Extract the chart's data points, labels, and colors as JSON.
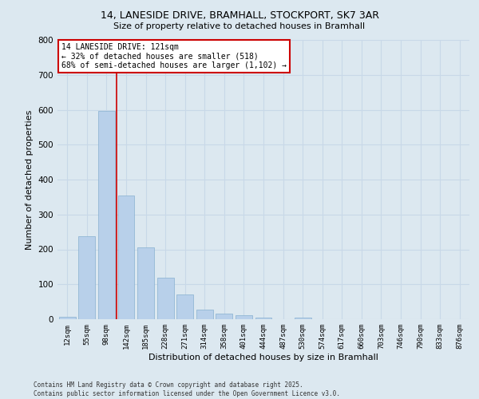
{
  "title_line1": "14, LANESIDE DRIVE, BRAMHALL, STOCKPORT, SK7 3AR",
  "title_line2": "Size of property relative to detached houses in Bramhall",
  "xlabel": "Distribution of detached houses by size in Bramhall",
  "ylabel": "Number of detached properties",
  "bar_labels": [
    "12sqm",
    "55sqm",
    "98sqm",
    "142sqm",
    "185sqm",
    "228sqm",
    "271sqm",
    "314sqm",
    "358sqm",
    "401sqm",
    "444sqm",
    "487sqm",
    "530sqm",
    "574sqm",
    "617sqm",
    "660sqm",
    "703sqm",
    "746sqm",
    "790sqm",
    "833sqm",
    "876sqm"
  ],
  "bar_values": [
    8,
    238,
    597,
    355,
    205,
    118,
    70,
    28,
    16,
    12,
    5,
    1,
    5,
    0,
    0,
    0,
    0,
    0,
    0,
    0,
    0
  ],
  "bar_color": "#b8d0ea",
  "bar_edge_color": "#88b0d0",
  "grid_color": "#c8d8e8",
  "bg_color": "#dce8f0",
  "vline_x": 2.5,
  "vline_color": "#cc0000",
  "annotation_title": "14 LANESIDE DRIVE: 121sqm",
  "annotation_line2": "← 32% of detached houses are smaller (518)",
  "annotation_line3": "68% of semi-detached houses are larger (1,102) →",
  "annotation_box_color": "#cc0000",
  "annotation_fill": "#ffffff",
  "footnote_line1": "Contains HM Land Registry data © Crown copyright and database right 2025.",
  "footnote_line2": "Contains public sector information licensed under the Open Government Licence v3.0.",
  "ylim": [
    0,
    800
  ],
  "yticks": [
    0,
    100,
    200,
    300,
    400,
    500,
    600,
    700,
    800
  ]
}
